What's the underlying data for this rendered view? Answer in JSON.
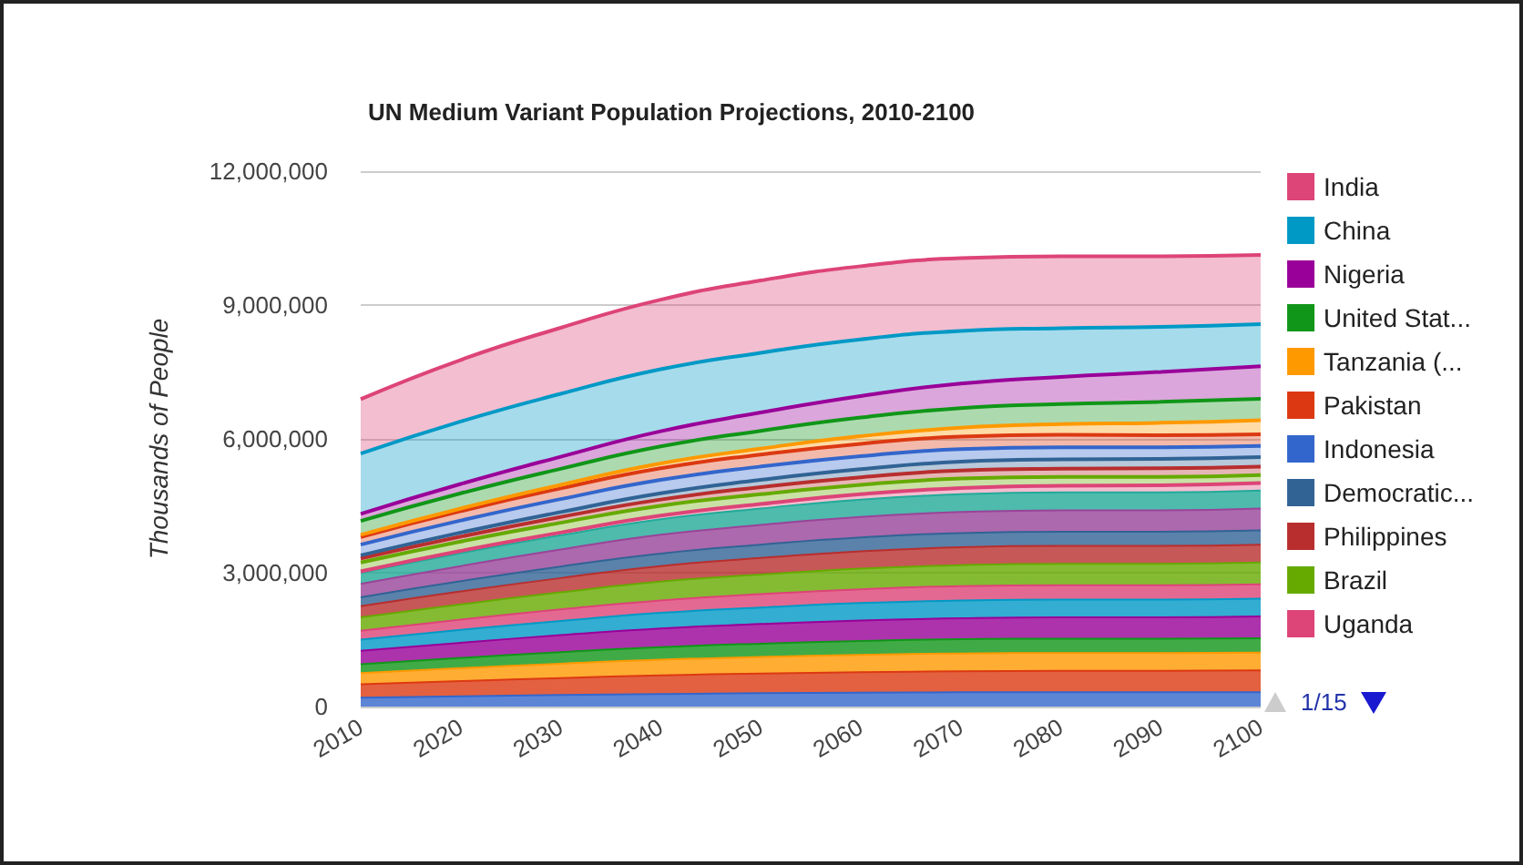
{
  "chart_data": {
    "type": "area",
    "title": "UN Medium Variant Population Projections, 2010-2100",
    "ylabel": "Thousands of People",
    "stacked": true,
    "x": [
      2010,
      2020,
      2030,
      2040,
      2050,
      2060,
      2070,
      2080,
      2090,
      2100
    ],
    "xlim": [
      2010,
      2100
    ],
    "xticks": [
      2010,
      2020,
      2030,
      2040,
      2050,
      2060,
      2070,
      2080,
      2090,
      2100
    ],
    "ylim": [
      0,
      12000000
    ],
    "yticks": [
      0,
      {
        "value": 3000000,
        "label": "3,000,000"
      },
      {
        "value": 6000000,
        "label": "6,000,000"
      },
      {
        "value": 9000000,
        "label": "9,000,000"
      },
      {
        "value": 12000000,
        "label": "12,000,000"
      }
    ],
    "grid": "y",
    "legend": "right",
    "marker": "none",
    "line_style": "solid",
    "annotations": [
      "1/15"
    ],
    "series": [
      {
        "color": "#3366cc",
        "values": [
          200000,
          230000,
          260000,
          280000,
          300000,
          310000,
          320000,
          320000,
          320000,
          320000
        ]
      },
      {
        "color": "#dc3912",
        "values": [
          300000,
          340000,
          380000,
          420000,
          440000,
          460000,
          470000,
          480000,
          480000,
          490000
        ]
      },
      {
        "color": "#ff9900",
        "values": [
          250000,
          290000,
          320000,
          350000,
          370000,
          390000,
          400000,
          400000,
          400000,
          400000
        ]
      },
      {
        "color": "#109618",
        "values": [
          200000,
          230000,
          260000,
          280000,
          300000,
          310000,
          320000,
          320000,
          320000,
          320000
        ]
      },
      {
        "color": "#990099",
        "values": [
          300000,
          340000,
          380000,
          420000,
          440000,
          460000,
          470000,
          480000,
          480000,
          490000
        ]
      },
      {
        "color": "#0099c6",
        "values": [
          250000,
          290000,
          320000,
          350000,
          370000,
          390000,
          400000,
          400000,
          400000,
          400000
        ]
      },
      {
        "color": "#dd4477",
        "values": [
          200000,
          230000,
          260000,
          280000,
          300000,
          310000,
          320000,
          320000,
          320000,
          320000
        ]
      },
      {
        "color": "#66aa00",
        "values": [
          300000,
          340000,
          380000,
          420000,
          440000,
          460000,
          470000,
          480000,
          480000,
          490000
        ]
      },
      {
        "color": "#b82e2e",
        "values": [
          250000,
          290000,
          320000,
          350000,
          370000,
          390000,
          400000,
          400000,
          400000,
          400000
        ]
      },
      {
        "color": "#316395",
        "values": [
          200000,
          230000,
          260000,
          280000,
          300000,
          310000,
          320000,
          320000,
          320000,
          320000
        ]
      },
      {
        "color": "#994499",
        "values": [
          300000,
          340000,
          380000,
          420000,
          440000,
          460000,
          470000,
          480000,
          480000,
          490000
        ]
      },
      {
        "color": "#22aa99",
        "values": [
          250000,
          290000,
          320000,
          350000,
          370000,
          390000,
          400000,
          400000,
          400000,
          400000
        ]
      },
      {
        "name": "Uganda",
        "color": "#dd4477",
        "values": [
          30000,
          50000,
          60000,
          80000,
          100000,
          120000,
          140000,
          150000,
          160000,
          170000
        ]
      },
      {
        "name": "Brazil",
        "color": "#66aa00",
        "values": [
          200000,
          210000,
          220000,
          220000,
          220000,
          210000,
          210000,
          200000,
          190000,
          180000
        ]
      },
      {
        "name": "Philippines",
        "color": "#b82e2e",
        "values": [
          90000,
          110000,
          130000,
          140000,
          160000,
          170000,
          180000,
          180000,
          190000,
          190000
        ]
      },
      {
        "name": "Democratic...",
        "color": "#316395",
        "values": [
          70000,
          90000,
          110000,
          140000,
          160000,
          180000,
          200000,
          210000,
          210000,
          210000
        ]
      },
      {
        "name": "Indonesia",
        "color": "#3366cc",
        "values": [
          240000,
          270000,
          290000,
          300000,
          300000,
          290000,
          280000,
          270000,
          260000,
          250000
        ]
      },
      {
        "name": "Pakistan",
        "color": "#dc3912",
        "values": [
          170000,
          210000,
          240000,
          260000,
          270000,
          280000,
          280000,
          280000,
          270000,
          260000
        ]
      },
      {
        "name": "Tanzania (...",
        "color": "#ff9900",
        "values": [
          50000,
          60000,
          80000,
          110000,
          130000,
          170000,
          200000,
          240000,
          280000,
          320000
        ]
      },
      {
        "name": "United Stat...",
        "color": "#109618",
        "values": [
          310000,
          340000,
          360000,
          380000,
          400000,
          420000,
          440000,
          450000,
          470000,
          480000
        ]
      },
      {
        "name": "Nigeria",
        "color": "#990099",
        "values": [
          160000,
          210000,
          270000,
          340000,
          410000,
          480000,
          550000,
          610000,
          670000,
          730000
        ]
      },
      {
        "name": "China",
        "color": "#0099c6",
        "values": [
          1350000,
          1400000,
          1410000,
          1390000,
          1340000,
          1270000,
          1180000,
          1090000,
          1010000,
          940000
        ]
      },
      {
        "name": "India",
        "color": "#dd4477",
        "values": [
          1220000,
          1380000,
          1480000,
          1560000,
          1620000,
          1640000,
          1630000,
          1610000,
          1580000,
          1550000
        ]
      }
    ]
  }
}
